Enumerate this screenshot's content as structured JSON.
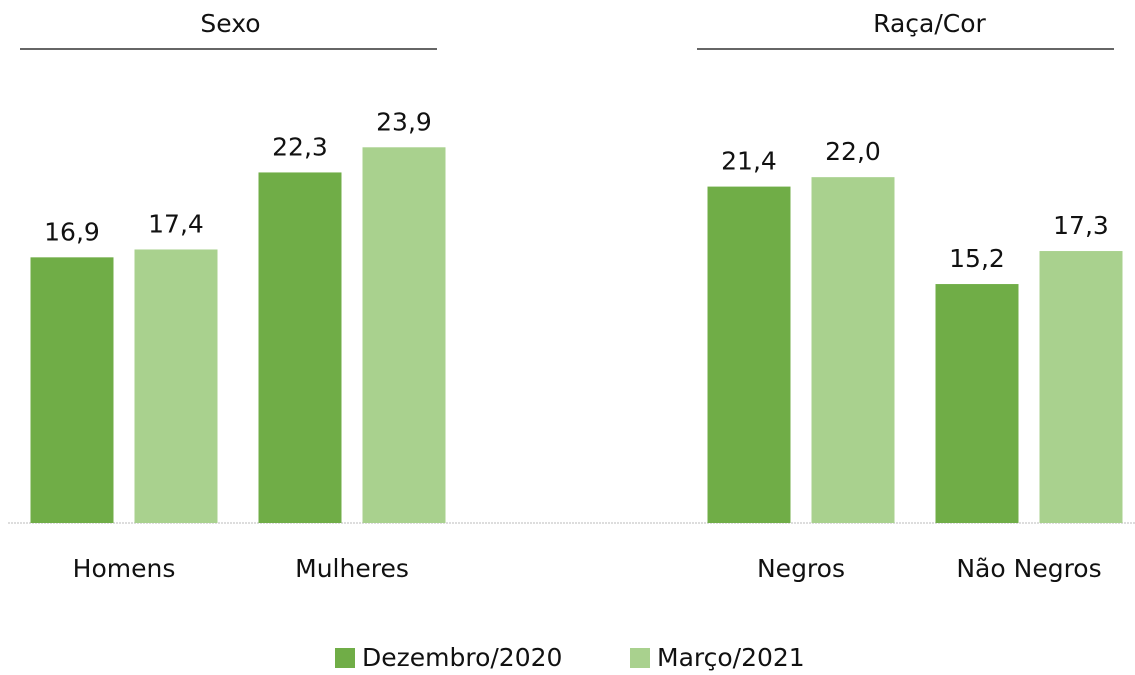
{
  "chart_data": {
    "type": "bar",
    "categories": [
      "Homens",
      "Mulheres",
      "Negros",
      "Não Negros"
    ],
    "groups": [
      {
        "title": "Sexo",
        "categories": [
          "Homens",
          "Mulheres"
        ]
      },
      {
        "title": "Raça/Cor",
        "categories": [
          "Negros",
          "Não Negros"
        ]
      }
    ],
    "series": [
      {
        "name": "Dezembro/2020",
        "color": "#70ad47",
        "values": [
          16.9,
          22.3,
          21.4,
          15.2
        ],
        "value_labels": [
          "16,9",
          "22,3",
          "21,4",
          "15,2"
        ]
      },
      {
        "name": "Março/2021",
        "color": "#a9d18e",
        "values": [
          17.4,
          23.9,
          22.0,
          17.3
        ],
        "value_labels": [
          "17,4",
          "23,9",
          "22,0",
          "17,3"
        ]
      }
    ],
    "ylim": [
      0,
      25
    ]
  }
}
